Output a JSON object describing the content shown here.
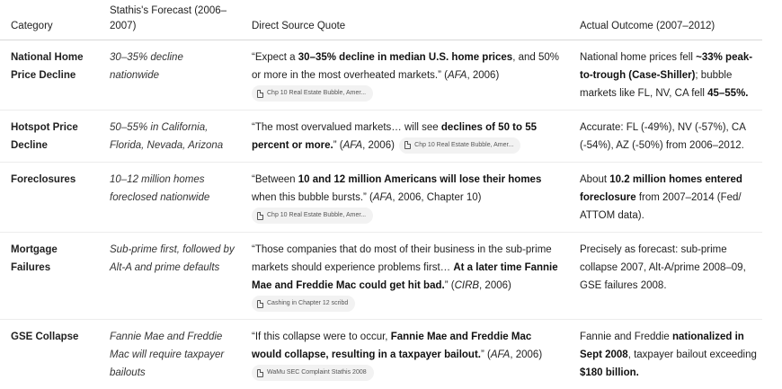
{
  "headers": [
    "Category",
    "Stathis's Forecast (2006–2007)",
    "Direct Source Quote",
    "Actual Outcome (2007–2012)"
  ],
  "rows": [
    {
      "category": "National Home Price Decline",
      "forecast": "30–35% decline nationwide",
      "quote": [
        {
          "t": "“Expect a "
        },
        {
          "t": "30–35% decline in median U.S. home prices",
          "b": true
        },
        {
          "t": ", and 50% or more in the most overheated markets.” ("
        },
        {
          "t": "AFA",
          "i": true
        },
        {
          "t": ", 2006)"
        }
      ],
      "source": "Chp 10 Real Estate Bubble, Amer...",
      "source_inline": false,
      "outcome": [
        {
          "t": "National home prices fell "
        },
        {
          "t": "~33% peak-to-trough (Case-Shiller)",
          "b": true
        },
        {
          "t": "; bubble markets like FL, NV, CA fell "
        },
        {
          "t": "45–55%.",
          "b": true
        }
      ]
    },
    {
      "category": "Hotspot Price Decline",
      "forecast": "50–55% in California, Florida, Nevada, Arizona",
      "quote": [
        {
          "t": "“The most overvalued markets… will see "
        },
        {
          "t": "declines of 50 to 55 percent or more.",
          "b": true
        },
        {
          "t": "” ("
        },
        {
          "t": "AFA",
          "i": true
        },
        {
          "t": ", 2006)"
        }
      ],
      "source": "Chp 10 Real Estate Bubble, Amer...",
      "source_inline": true,
      "outcome": [
        {
          "t": "Accurate: FL (-49%), NV (-57%), CA (-54%), AZ (-50%) from 2006–2012."
        }
      ]
    },
    {
      "category": "Foreclosures",
      "forecast": "10–12 million homes foreclosed nationwide",
      "quote": [
        {
          "t": "“Between "
        },
        {
          "t": "10 and 12 million Americans will lose their homes",
          "b": true
        },
        {
          "t": " when this bubble bursts.” ("
        },
        {
          "t": "AFA",
          "i": true
        },
        {
          "t": ", 2006, Chapter 10)"
        }
      ],
      "source": "Chp 10 Real Estate Bubble, Amer...",
      "source_inline": false,
      "outcome": [
        {
          "t": "About "
        },
        {
          "t": "10.2 million homes entered foreclosure",
          "b": true
        },
        {
          "t": " from 2007–2014 (Fed/ ATTOM data)."
        }
      ]
    },
    {
      "category": "Mortgage Failures",
      "forecast": "Sub-prime first, followed by Alt-A and prime defaults",
      "quote": [
        {
          "t": "“Those companies that do most of their business in the sub-prime markets should experience problems first… "
        },
        {
          "t": "At a later time Fannie Mae and Freddie Mac could get hit bad.",
          "b": true
        },
        {
          "t": "” ("
        },
        {
          "t": "CIRB",
          "i": true
        },
        {
          "t": ", 2006)"
        }
      ],
      "source": "Cashing in Chapter 12 scribd",
      "source_inline": false,
      "outcome": [
        {
          "t": "Precisely as forecast: sub-prime collapse 2007, Alt-A/prime 2008–09, GSE failures 2008."
        }
      ]
    },
    {
      "category": "GSE Collapse",
      "forecast": "Fannie Mae and Freddie Mac will require taxpayer bailouts",
      "quote": [
        {
          "t": "“If this collapse were to occur, "
        },
        {
          "t": "Fannie Mae and Freddie Mac would collapse, resulting in a taxpayer bailout.",
          "b": true
        },
        {
          "t": "” ("
        },
        {
          "t": "AFA",
          "i": true
        },
        {
          "t": ", 2006)"
        }
      ],
      "source": "WaMu SEC Complaint Stathis 2008",
      "source_inline": false,
      "outcome": [
        {
          "t": "Fannie and Freddie "
        },
        {
          "t": "nationalized in Sept 2008",
          "b": true
        },
        {
          "t": ", taxpayer bailout exceeding "
        },
        {
          "t": "$180 billion.",
          "b": true
        }
      ]
    }
  ]
}
